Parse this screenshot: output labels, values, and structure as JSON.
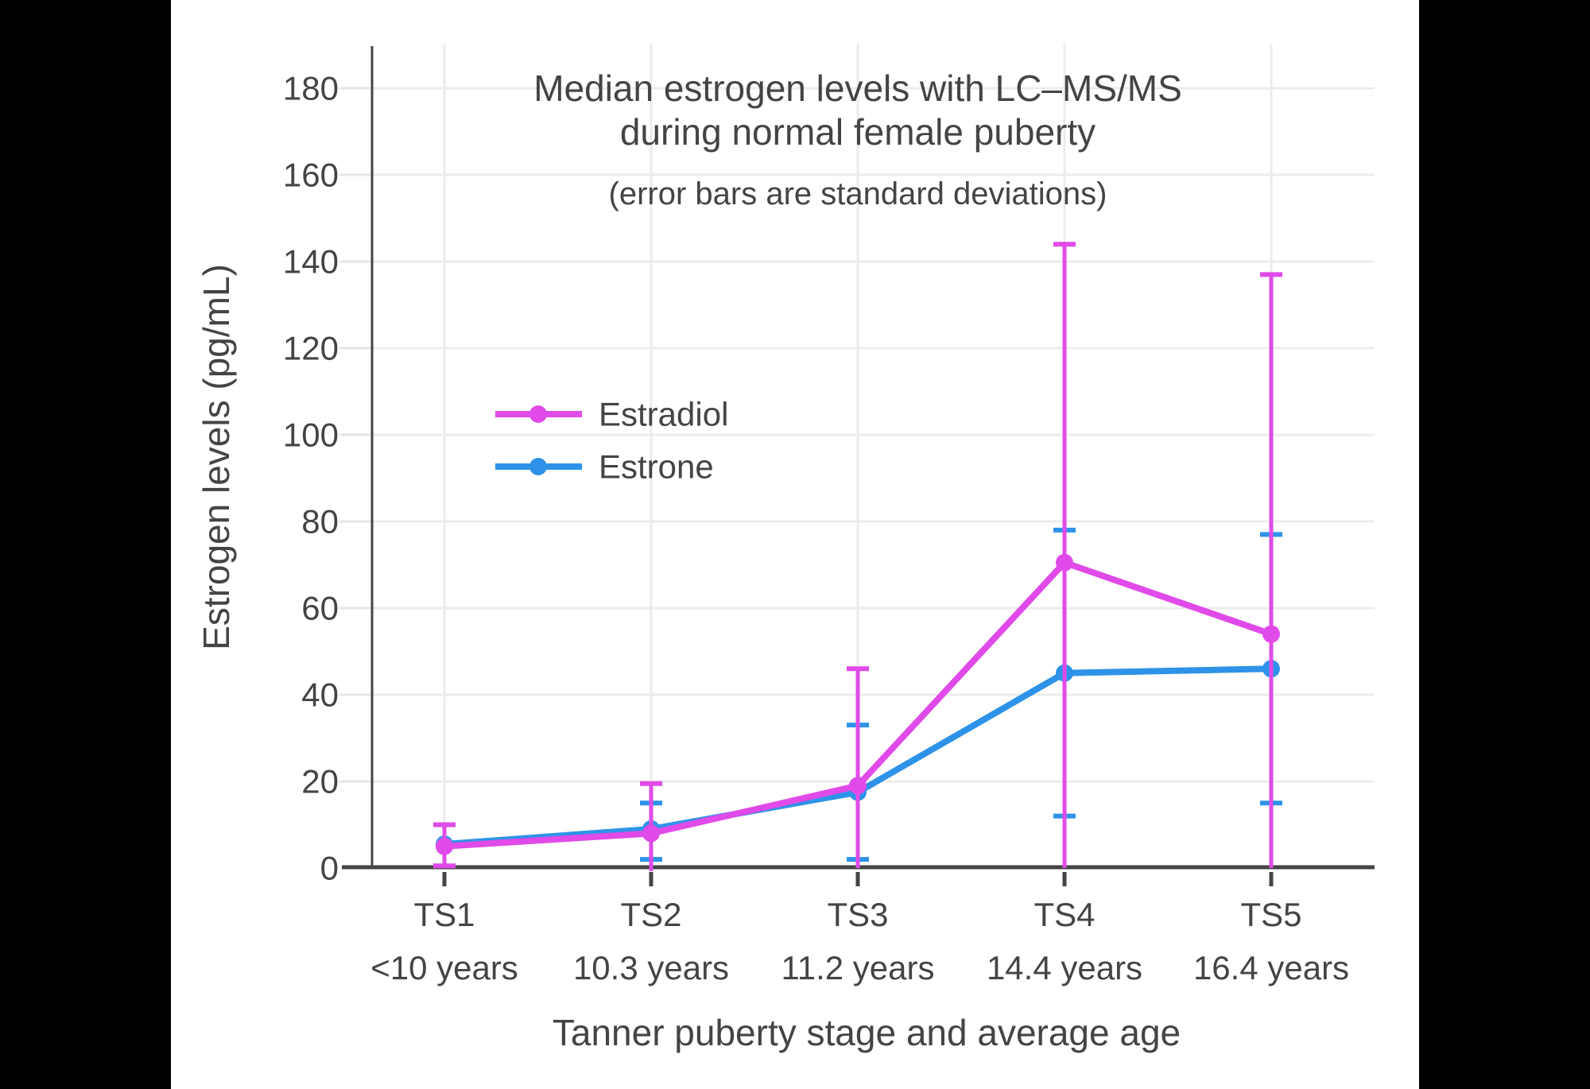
{
  "chart_data": {
    "type": "line",
    "title": "Median estrogen levels with LC–MS/MS",
    "title_line2": "during normal female puberty",
    "subtitle": "(error bars are standard deviations)",
    "xlabel": "Tanner puberty stage and average age",
    "ylabel": "Estrogen levels (pg/mL)",
    "categories": [
      "TS1",
      "TS2",
      "TS3",
      "TS4",
      "TS5"
    ],
    "category_sublabels": [
      "<10 years",
      "10.3 years",
      "11.2 years",
      "14.4 years",
      "16.4 years"
    ],
    "ylim": [
      0,
      190
    ],
    "yticks": [
      0,
      20,
      40,
      60,
      80,
      100,
      120,
      140,
      160,
      180
    ],
    "grid": true,
    "legend_position": "inside-upper-left",
    "series": [
      {
        "name": "Estradiol",
        "color": "#E04AE8",
        "values": [
          5,
          8,
          19,
          70.5,
          54
        ],
        "err_high": [
          10,
          19.5,
          46,
          144,
          137
        ],
        "err_low": [
          0.5,
          -0.7,
          0,
          0,
          0
        ]
      },
      {
        "name": "Estrone",
        "color": "#2E93E8",
        "values": [
          5.5,
          9,
          17.5,
          45,
          46
        ],
        "err_high": [
          null,
          15,
          33,
          78,
          77
        ],
        "err_low": [
          null,
          2,
          2,
          12,
          15
        ]
      }
    ]
  },
  "colors": {
    "text": "#444444",
    "axis": "#444444",
    "grid": "#ECECEC",
    "tick_minor": "#E6E6E6",
    "background": "#FFFFFF",
    "frame": "#000000"
  }
}
